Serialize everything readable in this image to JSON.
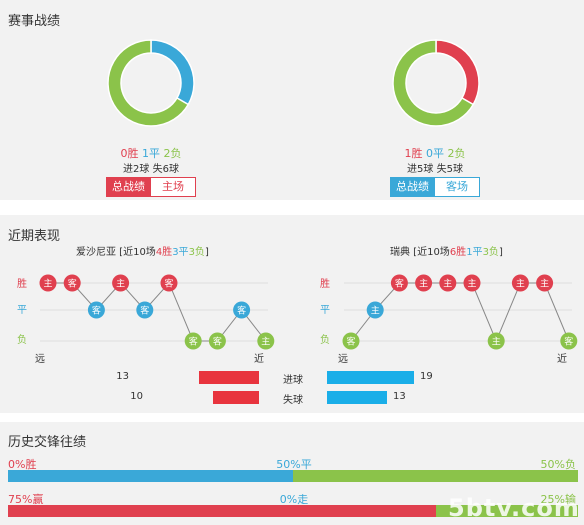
{
  "sections": {
    "record_title": "赛事战绩",
    "recent_title": "近期表现",
    "history_title": "历史交锋往绩"
  },
  "record": {
    "home": {
      "win": "0胜",
      "draw": "1平",
      "loss": "2负",
      "goals": "进2球 失6球",
      "tab_total": "总战绩",
      "tab_venue": "主场",
      "chart_data": {
        "type": "pie",
        "values": [
          0,
          1,
          2
        ],
        "labels": [
          "胜",
          "平",
          "负"
        ],
        "colors": [
          "#e0404f",
          "#3aa8d8",
          "#8bc34a"
        ]
      }
    },
    "away": {
      "win": "1胜",
      "draw": "0平",
      "loss": "2负",
      "goals": "进5球 失5球",
      "tab_total": "总战绩",
      "tab_venue": "客场",
      "chart_data": {
        "type": "pie",
        "values": [
          1,
          0,
          2
        ],
        "labels": [
          "胜",
          "平",
          "负"
        ],
        "colors": [
          "#e0404f",
          "#3aa8d8",
          "#8bc34a"
        ]
      }
    }
  },
  "recent": {
    "home": {
      "team": "爱沙尼亚",
      "prefix": " [近10场",
      "w": "4胜",
      "d": "3平",
      "l": "3负",
      "suffix": "]",
      "results": [
        "W",
        "W",
        "D",
        "W",
        "D",
        "W",
        "L",
        "L",
        "D",
        "L"
      ],
      "venues": [
        "主",
        "客",
        "客",
        "主",
        "客",
        "客",
        "客",
        "客",
        "客",
        "主"
      ]
    },
    "away": {
      "team": "瑞典",
      "prefix": " [近10场",
      "w": "6胜",
      "d": "1平",
      "l": "3负",
      "suffix": "]",
      "results": [
        "L",
        "D",
        "W",
        "W",
        "W",
        "W",
        "L",
        "W",
        "W",
        "L"
      ],
      "venues": [
        "客",
        "主",
        "客",
        "主",
        "主",
        "主",
        "主",
        "主",
        "主",
        "客"
      ]
    },
    "labels": {
      "win": "胜",
      "draw": "平",
      "loss": "负",
      "far": "远",
      "near": "近"
    },
    "stats": [
      {
        "label": "进球",
        "home": 13,
        "away": 19
      },
      {
        "label": "失球",
        "home": 10,
        "away": 13
      }
    ]
  },
  "history": {
    "row1": {
      "left": "0%胜",
      "mid": "50%平",
      "right": "50%负",
      "v_left": 0,
      "v_mid": 50,
      "v_right": 50
    },
    "row2": {
      "left": "75%赢",
      "mid": "0%走",
      "right": "25%输",
      "v_left": 75,
      "v_mid": 0,
      "v_right": 25
    }
  },
  "watermark": "5btv.com",
  "colors": {
    "red": "#e0404f",
    "blue": "#3aa8d8",
    "green": "#8bc34a",
    "statRed": "#e8343e",
    "statBlue": "#1aaee8"
  }
}
